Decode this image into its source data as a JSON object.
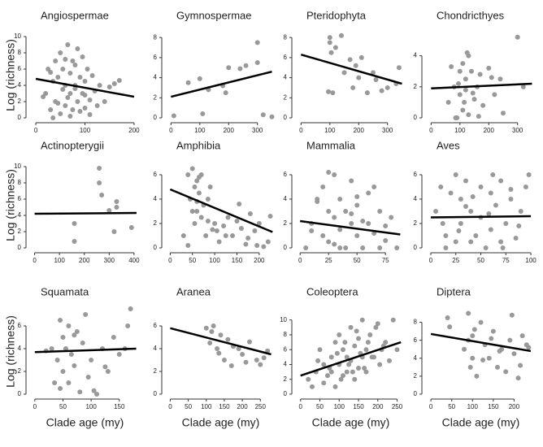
{
  "chart_data": [
    {
      "type": "scatter",
      "title": "Angiospermae",
      "ylabel": "Log (richness)",
      "color": "#999999",
      "x": [
        20,
        25,
        30,
        35,
        40,
        40,
        45,
        50,
        50,
        55,
        55,
        60,
        60,
        65,
        65,
        70,
        70,
        70,
        75,
        75,
        80,
        80,
        85,
        85,
        90,
        90,
        95,
        95,
        100,
        100,
        105,
        110,
        110,
        115,
        120,
        125,
        130,
        140,
        150,
        160,
        30,
        45,
        60,
        80,
        100,
        170,
        15,
        35
      ],
      "y": [
        3,
        6,
        1,
        4.5,
        7,
        2,
        5,
        8,
        0.5,
        3.5,
        6,
        1.5,
        4,
        9,
        2.5,
        5.5,
        0.2,
        3,
        7,
        1,
        4,
        6.5,
        2,
        8.5,
        0.8,
        5,
        3,
        7.5,
        1.2,
        4.5,
        6,
        2.2,
        0.4,
        5.2,
        3.3,
        1.5,
        4,
        2,
        3.8,
        4.2,
        5.6,
        1.8,
        7.2,
        3.6,
        2.8,
        4.6,
        2.6,
        0
      ],
      "fit": {
        "x": [
          0,
          200
        ],
        "y": [
          4.8,
          2.6
        ],
        "color": "#000000"
      },
      "xlim": [
        -10,
        210
      ],
      "ylim": [
        0,
        10.5
      ],
      "xticks": [
        0,
        100,
        200
      ],
      "yticks": [
        0,
        2,
        4,
        6,
        8,
        10
      ]
    },
    {
      "type": "scatter",
      "title": "Gymnospermae",
      "color": "#999999",
      "x": [
        10,
        60,
        100,
        130,
        180,
        190,
        200,
        240,
        260,
        300,
        300,
        320,
        350,
        110
      ],
      "y": [
        0.2,
        3.5,
        3.9,
        2.8,
        3.2,
        2.5,
        5,
        4.9,
        5.2,
        7.5,
        5.5,
        0.3,
        0.1,
        0.4
      ],
      "fit": {
        "x": [
          0,
          350
        ],
        "y": [
          2.1,
          4.6
        ],
        "color": "#000000"
      },
      "xlim": [
        -15,
        360
      ],
      "ylim": [
        0,
        8.5
      ],
      "xticks": [
        0,
        100,
        200,
        300
      ],
      "yticks": [
        0,
        2,
        4,
        6,
        8
      ]
    },
    {
      "type": "scatter",
      "title": "Pteridophyta",
      "color": "#999999",
      "x": [
        100,
        100,
        105,
        110,
        150,
        170,
        180,
        200,
        210,
        230,
        250,
        280,
        300,
        330,
        340,
        120,
        190,
        260,
        140,
        95
      ],
      "y": [
        8,
        7.5,
        6.5,
        2.5,
        4.5,
        5.8,
        3,
        4,
        6,
        2.5,
        4.5,
        2.7,
        3,
        3.4,
        5,
        7,
        5.2,
        3.8,
        8.2,
        2.6
      ],
      "fit": {
        "x": [
          0,
          350
        ],
        "y": [
          6.3,
          3.4
        ],
        "color": "#000000"
      },
      "xlim": [
        -15,
        360
      ],
      "ylim": [
        0,
        8.5
      ],
      "xticks": [
        0,
        100,
        200,
        300
      ],
      "yticks": [
        0,
        2,
        4,
        6,
        8
      ]
    },
    {
      "type": "scatter",
      "title": "Chondricthyes",
      "color": "#999999",
      "x": [
        60,
        80,
        90,
        100,
        100,
        110,
        110,
        120,
        120,
        130,
        130,
        140,
        150,
        160,
        170,
        180,
        200,
        220,
        240,
        250,
        300,
        320,
        70,
        85,
        95,
        115,
        125,
        145,
        165,
        210
      ],
      "y": [
        1,
        2,
        0,
        3,
        1.5,
        3.5,
        0.5,
        2.5,
        1.8,
        4,
        0.2,
        3,
        1.2,
        2,
        2.8,
        0.8,
        3.2,
        1.5,
        2.5,
        0.3,
        5.2,
        2,
        3.3,
        0,
        2.2,
        1,
        4.2,
        1.6,
        0.1,
        2.6
      ],
      "fit": {
        "x": [
          0,
          350
        ],
        "y": [
          1.9,
          2.2
        ],
        "color": "#000000"
      },
      "xlim": [
        -15,
        360
      ],
      "ylim": [
        0,
        5.5
      ],
      "xticks": [
        0,
        100,
        200,
        300
      ],
      "yticks": [
        0,
        2,
        4
      ]
    },
    {
      "type": "scatter",
      "title": "Actinopterygii",
      "ylabel": "Log (richness)",
      "color": "#999999",
      "x": [
        160,
        160,
        260,
        260,
        270,
        300,
        320,
        330,
        330,
        390
      ],
      "y": [
        0.8,
        3,
        9.8,
        8,
        6.5,
        4.6,
        2,
        5,
        5.7,
        2.5
      ],
      "fit": {
        "x": [
          0,
          410
        ],
        "y": [
          4.2,
          4.3
        ],
        "color": "#000000"
      },
      "xlim": [
        -15,
        420
      ],
      "ylim": [
        0,
        10.5
      ],
      "xticks": [
        0,
        100,
        200,
        300,
        400
      ],
      "yticks": [
        0,
        2,
        4,
        6,
        8,
        10
      ]
    },
    {
      "type": "scatter",
      "title": "Amphibia",
      "color": "#999999",
      "x": [
        30,
        40,
        45,
        50,
        55,
        55,
        60,
        60,
        65,
        70,
        70,
        75,
        80,
        85,
        90,
        95,
        100,
        110,
        120,
        130,
        140,
        150,
        160,
        170,
        180,
        190,
        200,
        210,
        220,
        50,
        65,
        85,
        105,
        125,
        155,
        175,
        195,
        225,
        40,
        60
      ],
      "y": [
        1,
        6,
        4,
        6.5,
        5,
        2,
        5.5,
        3,
        4.5,
        2.5,
        6,
        3.5,
        1,
        4,
        5,
        1.5,
        2,
        0.5,
        1.8,
        2.5,
        1,
        2.2,
        1.6,
        0.3,
        2.8,
        1.4,
        2,
        0.1,
        0.5,
        3,
        5.8,
        2.2,
        1.4,
        1,
        3.6,
        0.8,
        0.2,
        2.6,
        0.2,
        3.8
      ],
      "fit": {
        "x": [
          0,
          230
        ],
        "y": [
          4.8,
          1.3
        ],
        "color": "#000000"
      },
      "xlim": [
        -8,
        235
      ],
      "ylim": [
        0,
        7
      ],
      "xticks": [
        0,
        50,
        100,
        150,
        200
      ],
      "yticks": [
        0,
        2,
        4,
        6
      ]
    },
    {
      "type": "scatter",
      "title": "Mammalia",
      "color": "#999999",
      "x": [
        5,
        10,
        15,
        20,
        20,
        25,
        25,
        30,
        30,
        35,
        35,
        40,
        40,
        45,
        45,
        50,
        50,
        55,
        60,
        60,
        65,
        70,
        70,
        75,
        80,
        85,
        15,
        25,
        35,
        45,
        55,
        65,
        75,
        10,
        30,
        50
      ],
      "y": [
        0,
        2,
        4,
        1,
        5,
        3,
        0.5,
        2.5,
        6,
        1.5,
        4,
        0,
        3,
        2,
        5.5,
        1,
        3.5,
        0,
        2,
        4.5,
        1.2,
        0,
        3,
        1.8,
        2.5,
        0,
        3.8,
        6.2,
        0,
        2.8,
        2.2,
        5,
        0.6,
        1.4,
        0.3,
        4.2
      ],
      "fit": {
        "x": [
          0,
          88
        ],
        "y": [
          2.2,
          1.1
        ],
        "color": "#000000"
      },
      "xlim": [
        -3,
        92
      ],
      "ylim": [
        0,
        7
      ],
      "xticks": [
        0,
        25,
        50,
        75
      ],
      "yticks": [
        0,
        2,
        4,
        6
      ]
    },
    {
      "type": "scatter",
      "title": "Aves",
      "color": "#999999",
      "x": [
        5,
        10,
        15,
        20,
        25,
        25,
        30,
        30,
        35,
        40,
        40,
        45,
        50,
        50,
        55,
        60,
        60,
        65,
        70,
        70,
        75,
        80,
        85,
        90,
        95,
        98,
        12,
        28,
        42,
        58,
        72,
        88,
        35,
        62,
        15,
        80
      ],
      "y": [
        3,
        5,
        1,
        4.5,
        0.5,
        6,
        2,
        4,
        5.5,
        0.5,
        3,
        1,
        2.5,
        5,
        0,
        4.5,
        1.5,
        3.5,
        0.5,
        5.5,
        2,
        4,
        0.8,
        3,
        5,
        6,
        2,
        1.4,
        4.2,
        2.8,
        0,
        1.8,
        3.4,
        6,
        0,
        4.8
      ],
      "fit": {
        "x": [
          0,
          100
        ],
        "y": [
          2.5,
          2.6
        ],
        "color": "#000000"
      },
      "xlim": [
        -4,
        104
      ],
      "ylim": [
        0,
        7
      ],
      "xticks": [
        0,
        25,
        50,
        75,
        100
      ],
      "yticks": [
        0,
        2,
        4,
        6
      ]
    },
    {
      "type": "scatter",
      "title": "Squamata",
      "ylabel": "Log (richness)",
      "xlabel": "Clade age (my)",
      "color": "#999999",
      "x": [
        30,
        35,
        40,
        45,
        50,
        50,
        55,
        60,
        60,
        65,
        70,
        75,
        80,
        85,
        90,
        95,
        100,
        110,
        120,
        130,
        140,
        150,
        160,
        165,
        170,
        20,
        45,
        70,
        105,
        125
      ],
      "y": [
        4,
        1,
        3,
        0.5,
        5,
        2,
        4,
        6,
        1,
        3.5,
        2.5,
        5.5,
        0.2,
        4.5,
        7,
        1.5,
        3,
        0,
        4,
        2,
        5,
        3.5,
        4,
        6,
        7.5,
        3.8,
        6.5,
        5.2,
        0.3,
        2.4
      ],
      "fit": {
        "x": [
          0,
          180
        ],
        "y": [
          3.7,
          4
        ],
        "color": "#000000"
      },
      "xlim": [
        -7,
        185
      ],
      "ylim": [
        0,
        7.5
      ],
      "xticks": [
        0,
        50,
        100,
        150
      ],
      "yticks": [
        0,
        2,
        4,
        6
      ]
    },
    {
      "type": "scatter",
      "title": "Aranea",
      "xlabel": "Clade age (my)",
      "color": "#999999",
      "x": [
        100,
        110,
        120,
        130,
        140,
        150,
        160,
        170,
        190,
        200,
        210,
        220,
        240,
        250,
        260,
        270,
        115,
        135,
        175
      ],
      "y": [
        5.8,
        4.5,
        6,
        4,
        5.2,
        3,
        4.8,
        2.5,
        4,
        3.5,
        2.8,
        4.6,
        3,
        2.6,
        3.2,
        3.8,
        5.5,
        3.6,
        4.2
      ],
      "fit": {
        "x": [
          0,
          280
        ],
        "y": [
          5.8,
          3.5
        ],
        "color": "#000000"
      },
      "xlim": [
        -10,
        290
      ],
      "ylim": [
        0,
        7.5
      ],
      "xticks": [
        0,
        50,
        100,
        150,
        200,
        250
      ],
      "yticks": [
        0,
        2,
        4,
        6
      ]
    },
    {
      "type": "scatter",
      "title": "Coleoptera",
      "xlabel": "Clade age (my)",
      "color": "#999999",
      "x": [
        20,
        40,
        50,
        60,
        70,
        80,
        80,
        90,
        90,
        100,
        100,
        110,
        110,
        120,
        120,
        130,
        130,
        140,
        140,
        150,
        150,
        160,
        160,
        170,
        170,
        180,
        190,
        200,
        210,
        220,
        230,
        240,
        250,
        60,
        75,
        95,
        105,
        115,
        125,
        135,
        145,
        155,
        165,
        175,
        185,
        195,
        205,
        215,
        30,
        45
      ],
      "y": [
        2,
        3,
        6,
        4,
        2.5,
        5,
        3,
        7,
        1,
        4,
        8,
        2.5,
        6,
        5,
        3,
        9,
        4.5,
        6.5,
        2,
        7.5,
        3.5,
        5,
        10,
        6,
        3,
        8,
        5,
        9.5,
        6,
        7,
        4.5,
        10,
        6,
        1.5,
        3.5,
        5.5,
        2,
        7,
        4,
        3,
        8.5,
        5.5,
        3.5,
        7,
        5,
        9,
        4,
        6.5,
        1,
        4.5
      ],
      "fit": {
        "x": [
          0,
          260
        ],
        "y": [
          2.5,
          7
        ],
        "color": "#000000"
      },
      "xlim": [
        -10,
        270
      ],
      "ylim": [
        0,
        11.5
      ],
      "xticks": [
        0,
        50,
        100,
        150,
        200,
        250
      ],
      "yticks": [
        0,
        2,
        4,
        6,
        8,
        10
      ]
    },
    {
      "type": "scatter",
      "title": "Diptera",
      "xlabel": "Clade age (my)",
      "color": "#999999",
      "x": [
        40,
        45,
        80,
        90,
        95,
        100,
        100,
        110,
        120,
        130,
        140,
        150,
        160,
        170,
        180,
        190,
        200,
        210,
        220,
        230,
        105,
        125,
        145,
        165,
        195,
        215,
        235,
        90
      ],
      "y": [
        8.5,
        7.5,
        5,
        9,
        3,
        6.5,
        4,
        2,
        8,
        5.5,
        4,
        7,
        3,
        5,
        2.5,
        6,
        4.5,
        1.8,
        6.5,
        5.5,
        7.2,
        3.8,
        6.2,
        4.8,
        8.8,
        3.2,
        5.2,
        6
      ],
      "fit": {
        "x": [
          0,
          240
        ],
        "y": [
          6.7,
          4.8
        ],
        "color": "#000000"
      },
      "xlim": [
        -10,
        250
      ],
      "ylim": [
        0,
        9.5
      ],
      "xticks": [
        0,
        50,
        100,
        150,
        200
      ],
      "yticks": [
        0,
        2,
        4,
        6,
        8
      ]
    }
  ]
}
